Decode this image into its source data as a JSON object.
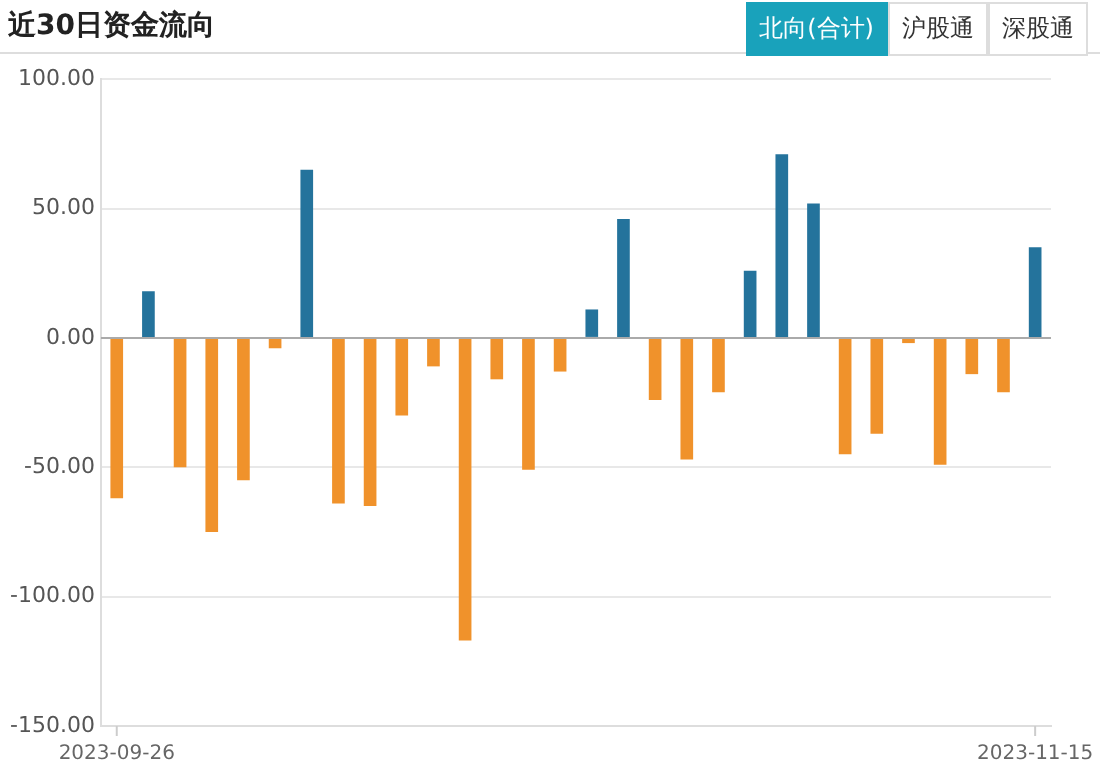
{
  "chart_data": {
    "type": "bar",
    "title": "近30日资金流向",
    "annotations": [
      "北向(合计)",
      "沪股通",
      "深股通"
    ],
    "categories": [
      "2023-09-26",
      null,
      null,
      null,
      null,
      null,
      null,
      null,
      null,
      null,
      null,
      null,
      null,
      null,
      null,
      null,
      null,
      null,
      null,
      null,
      null,
      null,
      null,
      null,
      null,
      null,
      null,
      null,
      null,
      "2023-11-15"
    ],
    "values": [
      -62,
      18,
      -50,
      -75,
      -55,
      -4,
      65,
      -64,
      -65,
      -30,
      -11,
      -117,
      -16,
      -51,
      -13,
      11,
      46,
      -24,
      -47,
      -21,
      26,
      71,
      52,
      -45,
      -37,
      -2,
      -49,
      -14,
      -21,
      35
    ],
    "colors": [
      "#f0922b",
      "#24739c",
      "#f0922b",
      "#f0922b",
      "#f0922b",
      "#f0922b",
      "#24739c",
      "#f0922b",
      "#f0922b",
      "#f0922b",
      "#f0922b",
      "#f0922b",
      "#f0922b",
      "#f0922b",
      "#f0922b",
      "#24739c",
      "#24739c",
      "#f0922b",
      "#f0922b",
      "#f0922b",
      "#24739c",
      "#24739c",
      "#24739c",
      "#f0922b",
      "#f0922b",
      "#f0922b",
      "#f0922b",
      "#f0922b",
      "#f0922b",
      "#24739c"
    ],
    "ylim": [
      -150,
      100
    ],
    "yticks": [
      {
        "value": -150,
        "label": "-150.00"
      },
      {
        "value": -100,
        "label": "-100.00"
      },
      {
        "value": -50,
        "label": "-50.00"
      },
      {
        "value": 0,
        "label": "0.00"
      },
      {
        "value": 50,
        "label": "50.00"
      },
      {
        "value": 100,
        "label": "100.00"
      }
    ],
    "grid": "y"
  }
}
